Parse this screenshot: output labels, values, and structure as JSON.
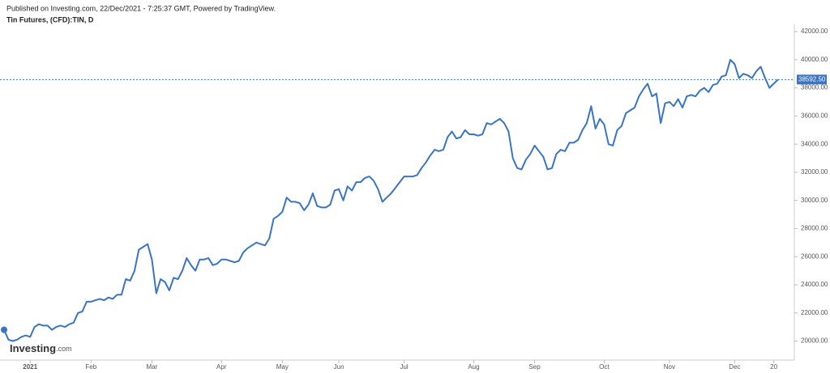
{
  "chart_data": {
    "type": "line",
    "subtitle": "Published on Investing.com, 22/Dec/2021 - 7:25:37 GMT, Powered by TradingView.",
    "title": "Tin Futures, (CFD):TIN, D",
    "logo": {
      "main": "Investing",
      "suffix": ".com"
    },
    "color": "#3a74c4",
    "values": [
      20800,
      20100,
      20000,
      20100,
      20300,
      20400,
      20300,
      21000,
      21200,
      21100,
      21100,
      20800,
      21000,
      21100,
      21000,
      21200,
      21300,
      22000,
      22100,
      22800,
      22800,
      22900,
      23000,
      22900,
      23100,
      23000,
      23300,
      23300,
      24400,
      24300,
      25000,
      26500,
      26700,
      26900,
      25800,
      23400,
      24400,
      24200,
      23600,
      24500,
      24400,
      25000,
      25900,
      25400,
      25000,
      25800,
      25800,
      25900,
      25400,
      25500,
      25800,
      25800,
      25700,
      25600,
      25700,
      26300,
      26600,
      26800,
      27000,
      26900,
      26800,
      27300,
      28700,
      28900,
      29200,
      30200,
      29900,
      29900,
      29800,
      29300,
      29700,
      30500,
      29600,
      29500,
      29500,
      29700,
      30700,
      30800,
      30000,
      31000,
      30700,
      31300,
      31300,
      31600,
      31700,
      31400,
      30800,
      29900,
      30200,
      30500,
      30900,
      31300,
      31700,
      31700,
      31700,
      31800,
      32300,
      32700,
      33200,
      33600,
      33500,
      33600,
      34500,
      34900,
      34400,
      34500,
      35000,
      34700,
      34700,
      34600,
      34700,
      35500,
      35400,
      35600,
      35800,
      35500,
      34900,
      33000,
      32300,
      32200,
      32900,
      33300,
      33900,
      33500,
      33100,
      32200,
      32300,
      33300,
      33600,
      33500,
      34100,
      34100,
      34300,
      35000,
      35500,
      36700,
      35100,
      35800,
      35400,
      34000,
      33900,
      35000,
      35300,
      36200,
      36400,
      36600,
      37400,
      37900,
      38300,
      37400,
      37600,
      35500,
      36900,
      37000,
      36700,
      37200,
      36600,
      37400,
      37500,
      37400,
      37800,
      38000,
      37700,
      38200,
      38300,
      38800,
      38900,
      40000,
      39700,
      38700,
      39000,
      38900,
      38700,
      39200,
      39500,
      38700,
      38000,
      38300,
      38592.5
    ],
    "price_line": {
      "value": 38592.5,
      "label": "38592.50"
    },
    "xlim": [
      0,
      178
    ],
    "xticks": [
      {
        "value": 6,
        "label": "2021"
      },
      {
        "value": 20,
        "label": "Feb"
      },
      {
        "value": 34,
        "label": "Mar"
      },
      {
        "value": 50,
        "label": "Apr"
      },
      {
        "value": 64,
        "label": "May"
      },
      {
        "value": 77,
        "label": "Jun"
      },
      {
        "value": 92,
        "label": "Jul"
      },
      {
        "value": 108,
        "label": "Aug"
      },
      {
        "value": 122,
        "label": "Sep"
      },
      {
        "value": 138,
        "label": "Oct"
      },
      {
        "value": 153,
        "label": "Nov"
      },
      {
        "value": 168,
        "label": "Dec"
      },
      {
        "value": 177,
        "label": "20"
      }
    ],
    "ylim": [
      18650,
      42350
    ],
    "yticks": [
      {
        "value": 20000,
        "label": "20000.00"
      },
      {
        "value": 22000,
        "label": "22000.00"
      },
      {
        "value": 24000,
        "label": "24000.00"
      },
      {
        "value": 26000,
        "label": "26000.00"
      },
      {
        "value": 28000,
        "label": "28000.00"
      },
      {
        "value": 30000,
        "label": "30000.00"
      },
      {
        "value": 32000,
        "label": "32000.00"
      },
      {
        "value": 34000,
        "label": "34000.00"
      },
      {
        "value": 36000,
        "label": "36000.00"
      },
      {
        "value": 38000,
        "label": "38000.00"
      },
      {
        "value": 40000,
        "label": "40000.00"
      },
      {
        "value": 42000,
        "label": "42000.00"
      }
    ]
  }
}
